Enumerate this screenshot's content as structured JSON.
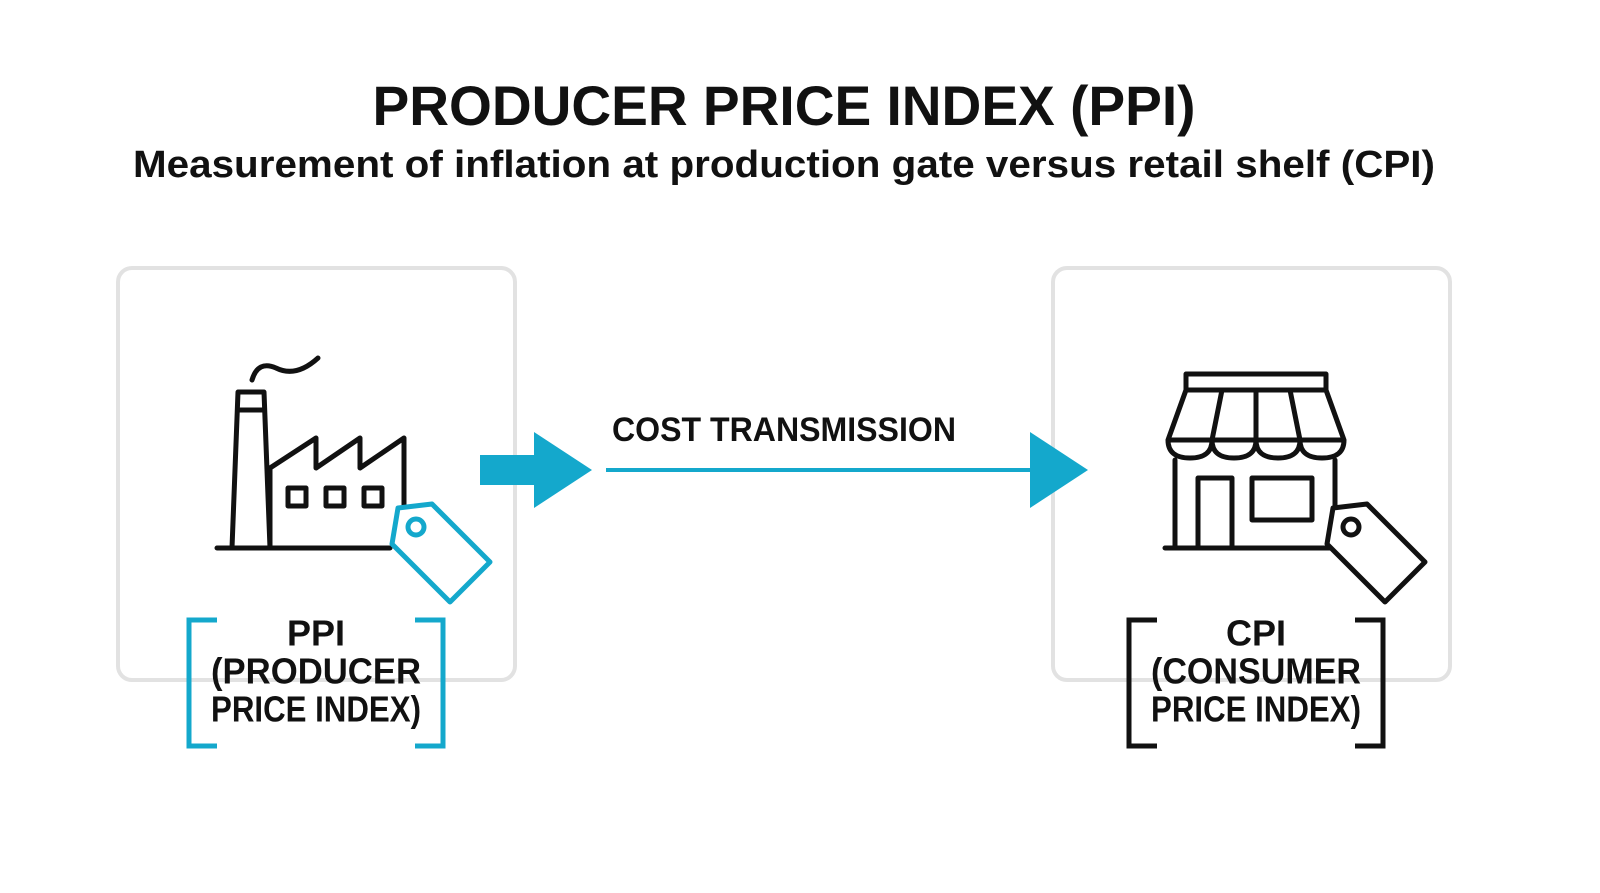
{
  "header": {
    "title": "PRODUCER PRICE INDEX (PPI)",
    "subtitle": "Measurement of inflation at production gate versus retail shelf (CPI)"
  },
  "nodes": [
    {
      "lines": [
        "PPI",
        "(PRODUCER",
        "PRICE INDEX)"
      ]
    },
    {
      "lines": [
        "CPI",
        "(CONSUMER",
        "PRICE INDEX)"
      ]
    }
  ],
  "edge": {
    "label": "COST TRANSMISSION"
  }
}
